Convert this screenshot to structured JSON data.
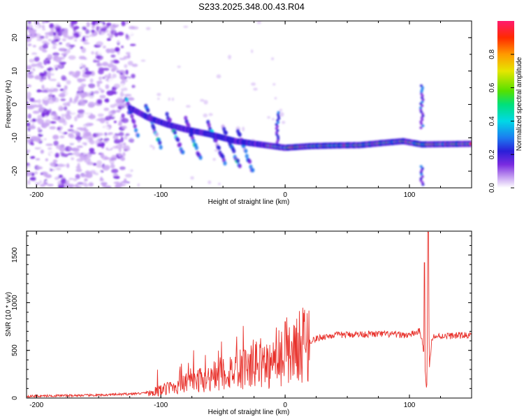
{
  "title": "S233.2025.348.00.43.R04",
  "chart_data": [
    {
      "type": "heatmap",
      "xlabel": "Height of straight line (km)",
      "ylabel": "Frequency (Hz)",
      "xlim": [
        -208,
        150
      ],
      "ylim": [
        -25,
        25
      ],
      "x_ticks": [
        -200,
        -100,
        0,
        100
      ],
      "y_ticks": [
        -20,
        -10,
        0,
        10,
        20
      ],
      "colorbar": {
        "label": "Normalized spectral amplitude",
        "range": [
          0.0,
          1.0
        ],
        "ticks": [
          0.0,
          0.2,
          0.4,
          0.6,
          0.8
        ],
        "tick_labels": [
          "0.0",
          "0.2",
          "0.4",
          "0.6",
          "0.8"
        ],
        "colors": [
          "#ffffff",
          "#c9a6f2",
          "#7a2be0",
          "#2a1fd8",
          "#1c7cf0",
          "#00d9e6",
          "#00e07a",
          "#55e000",
          "#e6e600",
          "#ff9a00",
          "#ff2a00",
          "#ff1a6e"
        ]
      },
      "main_band": [
        {
          "x": -125,
          "f": -1.0
        },
        {
          "x": -110,
          "f": -4.0
        },
        {
          "x": -95,
          "f": -6.0
        },
        {
          "x": -80,
          "f": -7.5
        },
        {
          "x": -60,
          "f": -9.0
        },
        {
          "x": -40,
          "f": -11.0
        },
        {
          "x": -20,
          "f": -12.0
        },
        {
          "x": -10,
          "f": -12.5
        },
        {
          "x": 0,
          "f": -13.0
        },
        {
          "x": 20,
          "f": -12.5
        },
        {
          "x": 40,
          "f": -12.3
        },
        {
          "x": 60,
          "f": -12.2
        },
        {
          "x": 80,
          "f": -11.5
        },
        {
          "x": 95,
          "f": -11.0
        },
        {
          "x": 110,
          "f": -12.0
        },
        {
          "x": 150,
          "f": -11.8
        }
      ]
    },
    {
      "type": "line",
      "xlabel": "Height of straight line (km)",
      "ylabel": "SNR (10 * v/v)",
      "xlim": [
        -208,
        150
      ],
      "ylim": [
        0,
        1750
      ],
      "x_ticks": [
        -200,
        -100,
        0,
        100
      ],
      "y_ticks": [
        0,
        500,
        1000,
        1500
      ],
      "color": "#e8312b",
      "x": [
        -208,
        -180,
        -150,
        -130,
        -115,
        -100,
        -90,
        -80,
        -70,
        -60,
        -50,
        -40,
        -30,
        -20,
        -10,
        -5,
        0,
        5,
        10,
        20,
        30,
        40,
        60,
        80,
        100,
        108,
        110,
        112,
        113,
        114,
        115,
        116,
        118,
        125,
        150
      ],
      "y": [
        20,
        25,
        30,
        40,
        50,
        80,
        120,
        150,
        180,
        220,
        260,
        300,
        340,
        380,
        330,
        400,
        500,
        480,
        520,
        600,
        640,
        660,
        670,
        670,
        660,
        700,
        640,
        420,
        200,
        110,
        1700,
        300,
        640,
        650,
        660
      ],
      "spikes": [
        {
          "x": 0,
          "y": 800
        },
        {
          "x": 112,
          "y": 1420
        },
        {
          "x": 115,
          "y": 1740
        }
      ]
    }
  ]
}
